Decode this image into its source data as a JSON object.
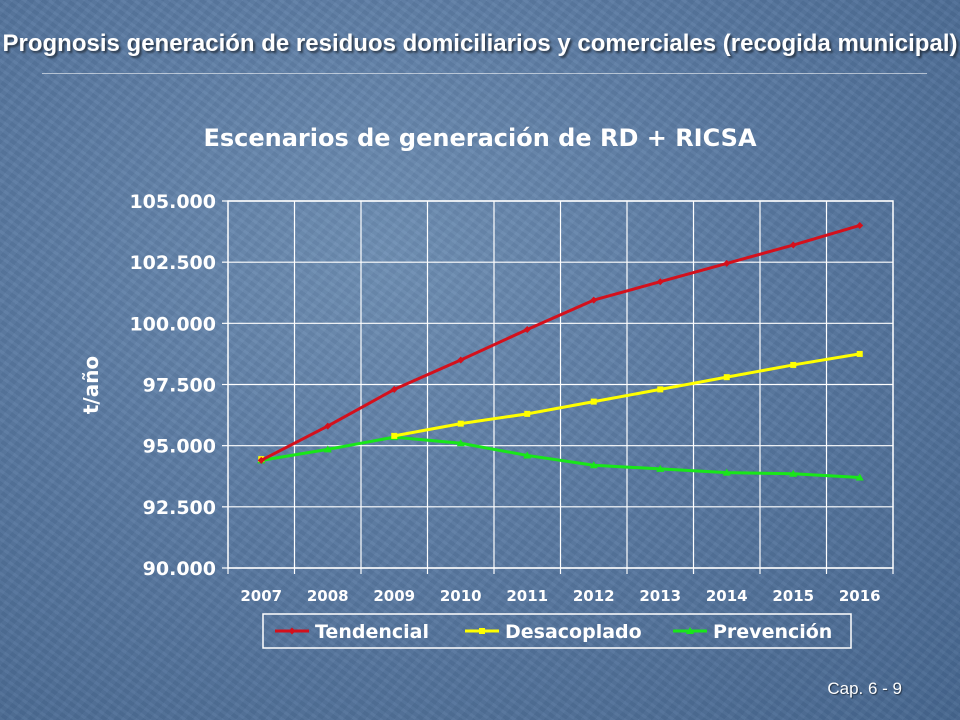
{
  "slide": {
    "title": "Prognosis generación de residuos domiciliarios y comerciales (recogida municipal)",
    "page_number": "Cap. 6 - 9"
  },
  "chart_data": {
    "type": "line",
    "title": "Escenarios de generación de RD + RICSA",
    "xlabel": "",
    "ylabel": "t/año",
    "categories": [
      "2007",
      "2008",
      "2009",
      "2010",
      "2011",
      "2012",
      "2013",
      "2014",
      "2015",
      "2016"
    ],
    "ylim": [
      90000,
      105000
    ],
    "yticks": [
      90000,
      92500,
      95000,
      97500,
      100000,
      102500,
      105000
    ],
    "ytick_labels": [
      "90.000",
      "92.500",
      "95.000",
      "97.500",
      "100.000",
      "102.500",
      "105.000"
    ],
    "grid": true,
    "legend_position": "bottom",
    "series": [
      {
        "name": "Tendencial",
        "color": "#d4101c",
        "marker": "diamond",
        "values": [
          94400,
          95800,
          97300,
          98500,
          99750,
          100950,
          101700,
          102450,
          103200,
          104000
        ]
      },
      {
        "name": "Desacoplado",
        "color": "#ffff00",
        "marker": "square",
        "values": [
          94450,
          null,
          95400,
          95900,
          96300,
          96800,
          97300,
          97800,
          98300,
          98750
        ]
      },
      {
        "name": "Prevención",
        "color": "#19e619",
        "marker": "triangle",
        "values": [
          94400,
          94850,
          95350,
          95100,
          94600,
          94200,
          94050,
          93900,
          93850,
          93700
        ]
      }
    ]
  }
}
